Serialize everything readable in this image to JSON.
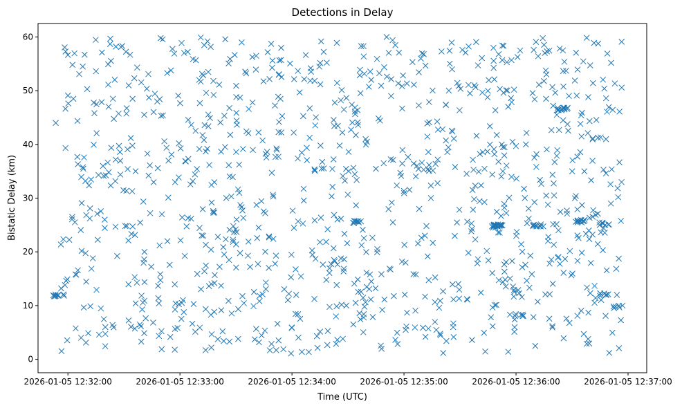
{
  "chart_data": {
    "type": "scatter",
    "title": "Detections in Delay",
    "xlabel": "Time (UTC)",
    "ylabel": "Bistatic Delay (km)",
    "marker": "x",
    "color": "#1f77b4",
    "grid": false,
    "legend": "none",
    "x_range": [
      "2026-01-05 12:31:44",
      "2026-01-05 12:37:10"
    ],
    "ylim": [
      -2.5,
      62.5
    ],
    "x_ticks": [
      "2026-01-05 12:32:00",
      "2026-01-05 12:33:00",
      "2026-01-05 12:34:00",
      "2026-01-05 12:35:00",
      "2026-01-05 12:36:00",
      "2026-01-05 12:37:00"
    ],
    "y_ticks": [
      "0",
      "10",
      "20",
      "30",
      "40",
      "50",
      "60"
    ],
    "time_span": [
      "2026-01-05 12:31:53",
      "2026-01-05 12:36:57"
    ],
    "points_generated": 1050,
    "clusters": [
      {
        "time": "2026-01-05 12:31:55",
        "delay": 12.0,
        "count": 10
      },
      {
        "time": "2026-01-05 12:34:15",
        "delay": 35.3,
        "count": 5
      },
      {
        "time": "2026-01-05 12:34:35",
        "delay": 25.5,
        "count": 8
      },
      {
        "time": "2026-01-05 12:35:50",
        "delay": 24.8,
        "count": 22
      },
      {
        "time": "2026-01-05 12:36:12",
        "delay": 25.0,
        "count": 10
      },
      {
        "time": "2026-01-05 12:36:25",
        "delay": 46.6,
        "count": 12
      },
      {
        "time": "2026-01-05 12:36:35",
        "delay": 25.7,
        "count": 10
      },
      {
        "time": "2026-01-05 12:36:47",
        "delay": 25.2,
        "count": 8
      },
      {
        "time": "2026-01-05 12:36:47",
        "delay": 12.0,
        "count": 6
      },
      {
        "time": "2026-01-05 12:36:55",
        "delay": 9.8,
        "count": 6
      },
      {
        "time": "2026-01-05 12:36:02",
        "delay": 8.3,
        "count": 5
      }
    ]
  }
}
